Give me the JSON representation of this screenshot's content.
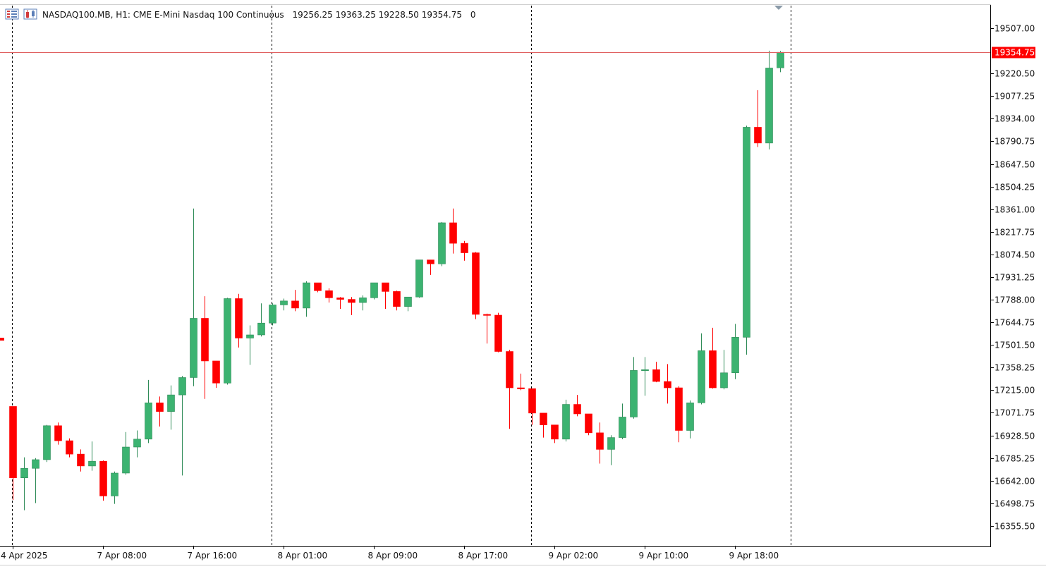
{
  "header": {
    "symbol_text": "NASDAQ100.MB, H1:  CME E-Mini Nasdaq 100 Continuous",
    "ohlc_text": "19256.25 19363.25 19228.50 19354.75",
    "volume_text": "0",
    "icons": [
      "chart-list-icon",
      "chart-bars-icon"
    ]
  },
  "colors": {
    "bull": "#3cb371",
    "bear": "#ff0000",
    "price_line": "#e06060",
    "grid_separator": "#000000",
    "axis": "#000000",
    "price_tag_bg": "#ff0000",
    "price_tag_text": "#ffffff"
  },
  "chart_data": {
    "type": "candlestick",
    "timeframe": "H1",
    "ylim": [
      16230,
      19650
    ],
    "y_ticks": [
      "19507.00",
      "19220.50",
      "19077.25",
      "18934.00",
      "18790.75",
      "18647.50",
      "18504.25",
      "18361.00",
      "18217.75",
      "18074.50",
      "17931.25",
      "17788.00",
      "17644.75",
      "17501.50",
      "17358.25",
      "17215.00",
      "17071.75",
      "16928.50",
      "16785.25",
      "16642.00",
      "16498.75",
      "16355.50"
    ],
    "current_price": "19354.75",
    "x_labels": [
      {
        "text": "4 Apr 2025",
        "index": 0
      },
      {
        "text": "7 Apr 08:00",
        "index": 8
      },
      {
        "text": "7 Apr 16:00",
        "index": 16
      },
      {
        "text": "8 Apr 01:00",
        "index": 24
      },
      {
        "text": "8 Apr 09:00",
        "index": 32
      },
      {
        "text": "8 Apr 17:00",
        "index": 40
      },
      {
        "text": "9 Apr 02:00",
        "index": 48
      },
      {
        "text": "9 Apr 10:00",
        "index": 56
      },
      {
        "text": "9 Apr 18:00",
        "index": 64
      }
    ],
    "day_separators": [
      0,
      23,
      46,
      69
    ],
    "candles": [
      [
        17112,
        17112,
        16520,
        16660
      ],
      [
        16660,
        16790,
        16455,
        16720
      ],
      [
        16720,
        16785,
        16500,
        16775
      ],
      [
        16775,
        16995,
        16760,
        16990
      ],
      [
        16990,
        17010,
        16870,
        16895
      ],
      [
        16895,
        16910,
        16790,
        16810
      ],
      [
        16810,
        16840,
        16700,
        16735
      ],
      [
        16735,
        16890,
        16705,
        16765
      ],
      [
        16765,
        16770,
        16515,
        16545
      ],
      [
        16545,
        16700,
        16495,
        16690
      ],
      [
        16690,
        16950,
        16680,
        16855
      ],
      [
        16855,
        16960,
        16790,
        16905
      ],
      [
        16905,
        17280,
        16880,
        17135
      ],
      [
        17135,
        17175,
        16985,
        17080
      ],
      [
        17080,
        17245,
        16965,
        17185
      ],
      [
        17185,
        17305,
        16675,
        17295
      ],
      [
        17295,
        18365,
        17240,
        17670
      ],
      [
        17670,
        17810,
        17160,
        17400
      ],
      [
        17400,
        17400,
        17230,
        17260
      ],
      [
        17260,
        17800,
        17250,
        17795
      ],
      [
        17795,
        17825,
        17485,
        17545
      ],
      [
        17545,
        17625,
        17375,
        17565
      ],
      [
        17565,
        17765,
        17555,
        17640
      ],
      [
        17640,
        17765,
        17625,
        17755
      ],
      [
        17755,
        17795,
        17720,
        17780
      ],
      [
        17780,
        17850,
        17715,
        17735
      ],
      [
        17735,
        17905,
        17680,
        17895
      ],
      [
        17895,
        17895,
        17835,
        17845
      ],
      [
        17845,
        17860,
        17770,
        17800
      ],
      [
        17800,
        17805,
        17730,
        17790
      ],
      [
        17790,
        17805,
        17690,
        17770
      ],
      [
        17770,
        17815,
        17720,
        17800
      ],
      [
        17800,
        17895,
        17790,
        17895
      ],
      [
        17895,
        17895,
        17730,
        17840
      ],
      [
        17840,
        17845,
        17720,
        17745
      ],
      [
        17745,
        17805,
        17715,
        17805
      ],
      [
        17805,
        18040,
        17800,
        18040
      ],
      [
        18040,
        18040,
        17945,
        18015
      ],
      [
        18015,
        18280,
        18000,
        18275
      ],
      [
        18275,
        18365,
        18080,
        18145
      ],
      [
        18145,
        18160,
        18035,
        18085
      ],
      [
        18085,
        18090,
        17665,
        17695
      ],
      [
        17695,
        17700,
        17510,
        17690
      ],
      [
        17690,
        17705,
        17455,
        17460
      ],
      [
        17460,
        17470,
        16970,
        17230
      ],
      [
        17230,
        17320,
        17215,
        17225
      ],
      [
        17225,
        17225,
        16995,
        17070
      ],
      [
        17070,
        17070,
        16915,
        16995
      ],
      [
        16995,
        16995,
        16880,
        16905
      ],
      [
        16905,
        17155,
        16890,
        17125
      ],
      [
        17125,
        17185,
        17050,
        17065
      ],
      [
        17065,
        17065,
        16930,
        16945
      ],
      [
        16945,
        17010,
        16750,
        16840
      ],
      [
        16840,
        16930,
        16740,
        16915
      ],
      [
        16915,
        17130,
        16905,
        17045
      ],
      [
        17045,
        17425,
        17035,
        17340
      ],
      [
        17340,
        17425,
        17180,
        17345
      ],
      [
        17345,
        17395,
        17265,
        17270
      ],
      [
        17270,
        17380,
        17130,
        17230
      ],
      [
        17230,
        17240,
        16885,
        16960
      ],
      [
        16960,
        17150,
        16910,
        17135
      ],
      [
        17135,
        17575,
        17125,
        17465
      ],
      [
        17465,
        17610,
        17225,
        17230
      ],
      [
        17230,
        17470,
        17220,
        17325
      ],
      [
        17325,
        17635,
        17285,
        17550
      ],
      [
        17550,
        18890,
        17440,
        18880
      ],
      [
        18880,
        19115,
        18755,
        18780
      ],
      [
        18780,
        19365,
        18740,
        19255
      ],
      [
        19256.25,
        19363.25,
        19228.5,
        19354.75
      ]
    ]
  }
}
